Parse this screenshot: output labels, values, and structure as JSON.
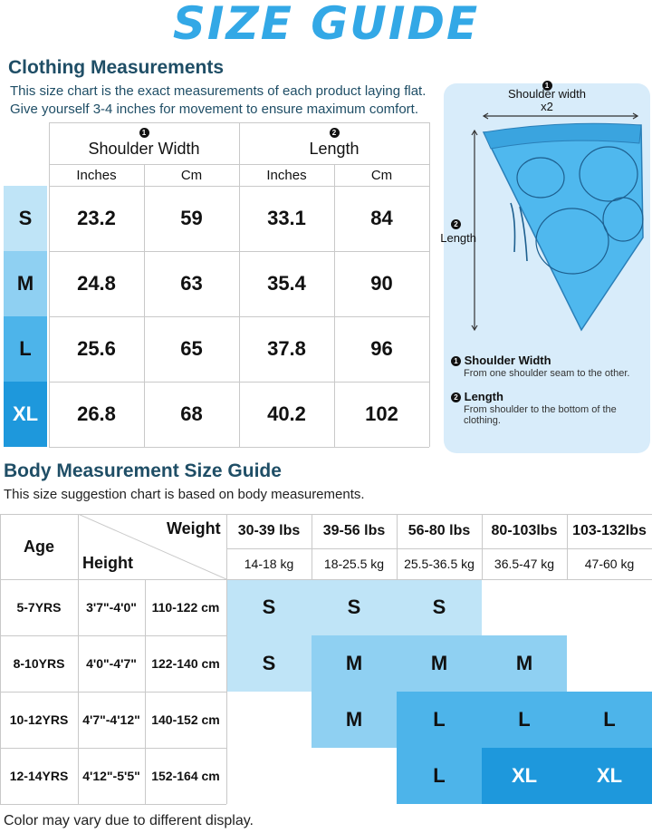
{
  "title": "SIZE GUIDE",
  "clothing": {
    "heading": "Clothing Measurements",
    "desc_line1": "This size chart is the exact measurements of each product laying flat.",
    "desc_line2": "Give yourself 3-4 inches for movement to ensure maximum comfort.",
    "col1_num": "1",
    "col1_label": "Shoulder Width",
    "col2_num": "2",
    "col2_label": "Length",
    "unit_in": "Inches",
    "unit_cm": "Cm",
    "rows": [
      {
        "size": "S",
        "sw_in": "23.2",
        "sw_cm": "59",
        "len_in": "33.1",
        "len_cm": "84"
      },
      {
        "size": "M",
        "sw_in": "24.8",
        "sw_cm": "63",
        "len_in": "35.4",
        "len_cm": "90"
      },
      {
        "size": "L",
        "sw_in": "25.6",
        "sw_cm": "65",
        "len_in": "37.8",
        "len_cm": "96"
      },
      {
        "size": "XL",
        "sw_in": "26.8",
        "sw_cm": "68",
        "len_in": "40.2",
        "len_cm": "102"
      }
    ],
    "size_colors": [
      "#bfe4f7",
      "#8fd0f2",
      "#4db4ea",
      "#1e98dc"
    ]
  },
  "diagram": {
    "shoulder_num": "1",
    "shoulder_label": "Shoulder width",
    "shoulder_mult": "x2",
    "length_num": "2",
    "length_label": "Length",
    "legend": [
      {
        "num": "1",
        "title": "Shoulder Width",
        "desc": "From one shoulder seam to the other."
      },
      {
        "num": "2",
        "title": "Length",
        "desc": "From shoulder to the bottom of the clothing."
      }
    ],
    "garment_color": "#4fb8ee"
  },
  "body": {
    "heading": "Body Measurement Size Guide",
    "desc": "This size suggestion chart is based on body measurements.",
    "age_label": "Age",
    "weight_label": "Weight",
    "height_label": "Height",
    "weights_lbs": [
      "30-39 lbs",
      "39-56 lbs",
      "56-80 lbs",
      "80-103lbs",
      "103-132lbs"
    ],
    "weights_kg": [
      "14-18 kg",
      "18-25.5 kg",
      "25.5-36.5 kg",
      "36.5-47 kg",
      "47-60 kg"
    ],
    "rows": [
      {
        "age": "5-7YRS",
        "height_ft": "3'7\"-4'0\"",
        "height_cm": "110-122 cm",
        "sizes": [
          "S",
          "S",
          "S",
          "",
          ""
        ]
      },
      {
        "age": "8-10YRS",
        "height_ft": "4'0\"-4'7\"",
        "height_cm": "122-140 cm",
        "sizes": [
          "S",
          "M",
          "M",
          "M",
          ""
        ]
      },
      {
        "age": "10-12YRS",
        "height_ft": "4'7\"-4'12\"",
        "height_cm": "140-152 cm",
        "sizes": [
          "",
          "M",
          "L",
          "L",
          "L"
        ]
      },
      {
        "age": "12-14YRS",
        "height_ft": "4'12\"-5'5\"",
        "height_cm": "152-164 cm",
        "sizes": [
          "",
          "",
          "L",
          "XL",
          "XL"
        ]
      }
    ],
    "band_colors": [
      "#bfe4f7",
      "#8fd0f2",
      "#4db4ea",
      "#1e98dc"
    ]
  },
  "footer": "Color may vary due to different display."
}
